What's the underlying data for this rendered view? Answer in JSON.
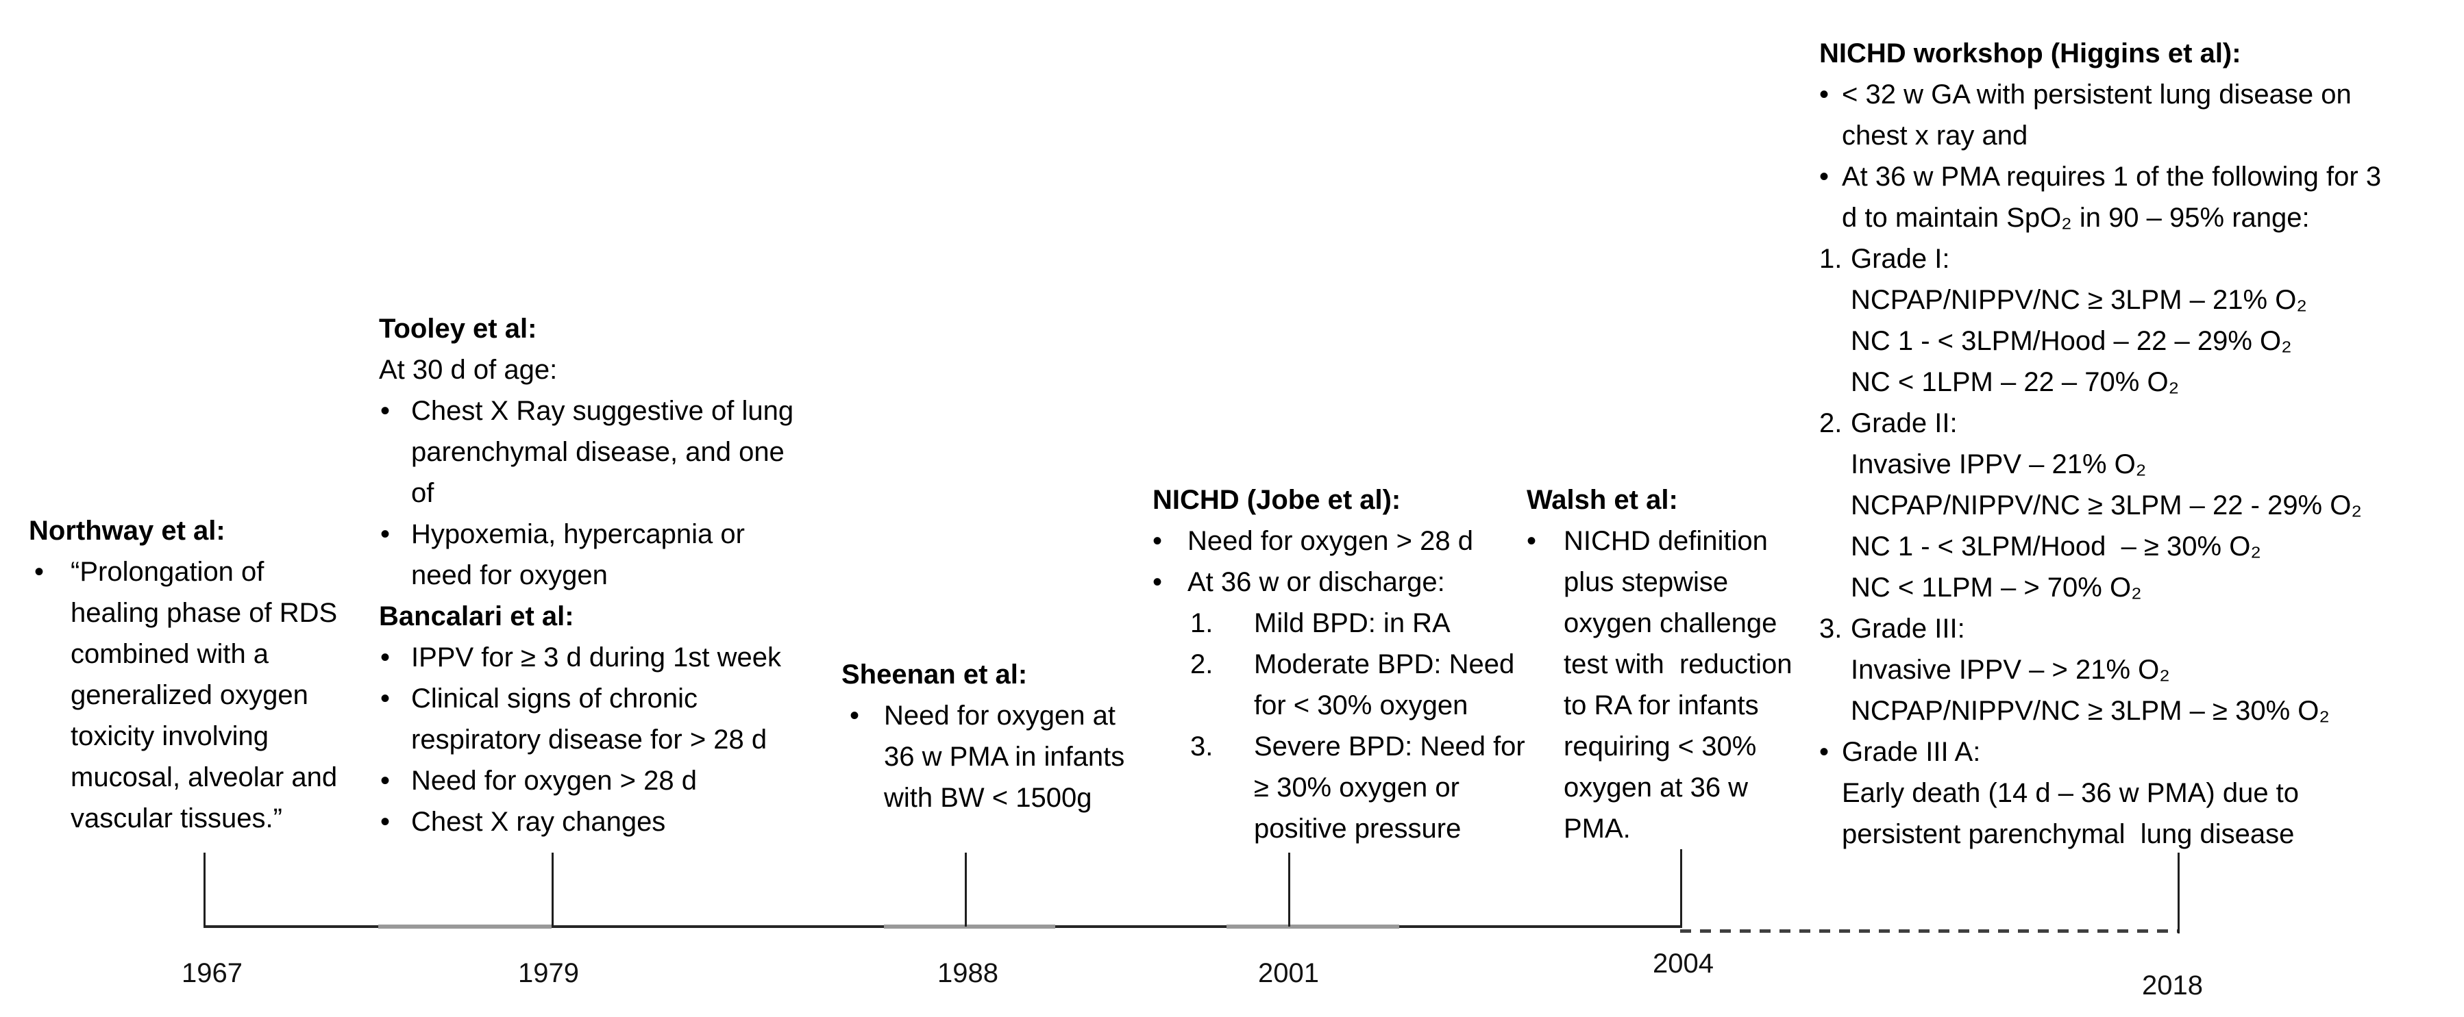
{
  "figure": {
    "description_colors": {
      "text": "#000000",
      "axis": "#262626",
      "axis_gray": "#999999",
      "background": "#ffffff"
    }
  },
  "timeline": {
    "years": [
      {
        "label": "1967"
      },
      {
        "label": "1979"
      },
      {
        "label": "1988"
      },
      {
        "label": "2001"
      },
      {
        "label": "2004"
      },
      {
        "label": "2018"
      }
    ]
  },
  "blocks": [
    {
      "id": "northway",
      "title": "Northway et al:",
      "items": [
        {
          "m": "•",
          "lines": [
            "“Prolongation of",
            "healing phase of RDS",
            "combined with a",
            "generalized oxygen",
            "toxicity involving",
            "mucosal, alveolar and",
            "vascular tissues.”"
          ]
        }
      ]
    },
    {
      "id": "tooley",
      "title": "Tooley et al:",
      "subtitle": "At 30 d of age:",
      "items": [
        {
          "m": "•",
          "lines": [
            "Chest X Ray suggestive of lung",
            "parenchymal disease, and one",
            "of"
          ]
        },
        {
          "m": "•",
          "lines": [
            "Hypoxemia, hypercapnia or",
            "need for oxygen"
          ]
        }
      ]
    },
    {
      "id": "bancalari",
      "title": "Bancalari et al:",
      "items": [
        {
          "m": "•",
          "lines": [
            "IPPV for ≥ 3 d during 1st week"
          ]
        },
        {
          "m": "•",
          "lines": [
            "Clinical signs of chronic",
            "respiratory disease for > 28 d"
          ]
        },
        {
          "m": "•",
          "lines": [
            "Need for oxygen > 28 d"
          ]
        },
        {
          "m": "•",
          "lines": [
            "Chest X ray changes"
          ]
        }
      ]
    },
    {
      "id": "sheenan",
      "title": "Sheenan et al:",
      "items": [
        {
          "m": "•",
          "lines": [
            "Need for oxygen at",
            "36 w PMA in infants",
            "with BW < 1500g"
          ]
        }
      ]
    },
    {
      "id": "jobe",
      "title": "NICHD (Jobe et al):",
      "items": [
        {
          "m": "•",
          "lines": [
            "Need for oxygen > 28 d"
          ]
        },
        {
          "m": "•",
          "lines": [
            "At 36 w or discharge:"
          ]
        },
        {
          "m": "1.",
          "lines": [
            "Mild BPD: in RA"
          ]
        },
        {
          "m": "2.",
          "lines": [
            "Moderate BPD: Need",
            "for < 30% oxygen"
          ]
        },
        {
          "m": "3.",
          "lines": [
            "Severe BPD: Need for",
            "≥ 30% oxygen or",
            "positive pressure"
          ]
        }
      ]
    },
    {
      "id": "walsh",
      "title": "Walsh et al:",
      "items": [
        {
          "m": "•",
          "lines": [
            "NICHD definition",
            "plus stepwise",
            "oxygen challenge",
            "test with  reduction",
            "to RA for infants",
            "requiring < 30%",
            "oxygen at 36 w",
            "PMA."
          ]
        }
      ]
    },
    {
      "id": "higgins",
      "title": "NICHD workshop (Higgins et al):",
      "items": [
        {
          "m": "•",
          "lines": [
            "< 32 w GA with persistent lung disease on",
            "chest x ray and"
          ]
        },
        {
          "m": "•",
          "lines": [
            "At 36 w PMA requires 1 of the following for 3",
            "d to maintain SpO₂ in 90 – 95% range:"
          ]
        },
        {
          "m": "1.",
          "lines": [
            "Grade I:",
            "NCPAP/NIPPV/NC ≥ 3LPM – 21% O₂",
            "NC 1 - < 3LPM/Hood – 22 – 29% O₂",
            "NC < 1LPM – 22 – 70% O₂"
          ]
        },
        {
          "m": "2.",
          "lines": [
            "Grade II:",
            "Invasive IPPV – 21% O₂",
            "NCPAP/NIPPV/NC ≥ 3LPM – 22 - 29% O₂",
            "NC 1 - < 3LPM/Hood  – ≥ 30% O₂",
            "NC < 1LPM – > 70% O₂"
          ]
        },
        {
          "m": "3.",
          "lines": [
            "Grade III:",
            "Invasive IPPV – > 21% O₂",
            "NCPAP/NIPPV/NC ≥ 3LPM – ≥ 30% O₂"
          ]
        },
        {
          "m": "•",
          "lines": [
            "Grade III A:",
            "Early death (14 d – 36 w PMA) due to",
            "persistent parenchymal  lung disease"
          ]
        }
      ]
    }
  ]
}
